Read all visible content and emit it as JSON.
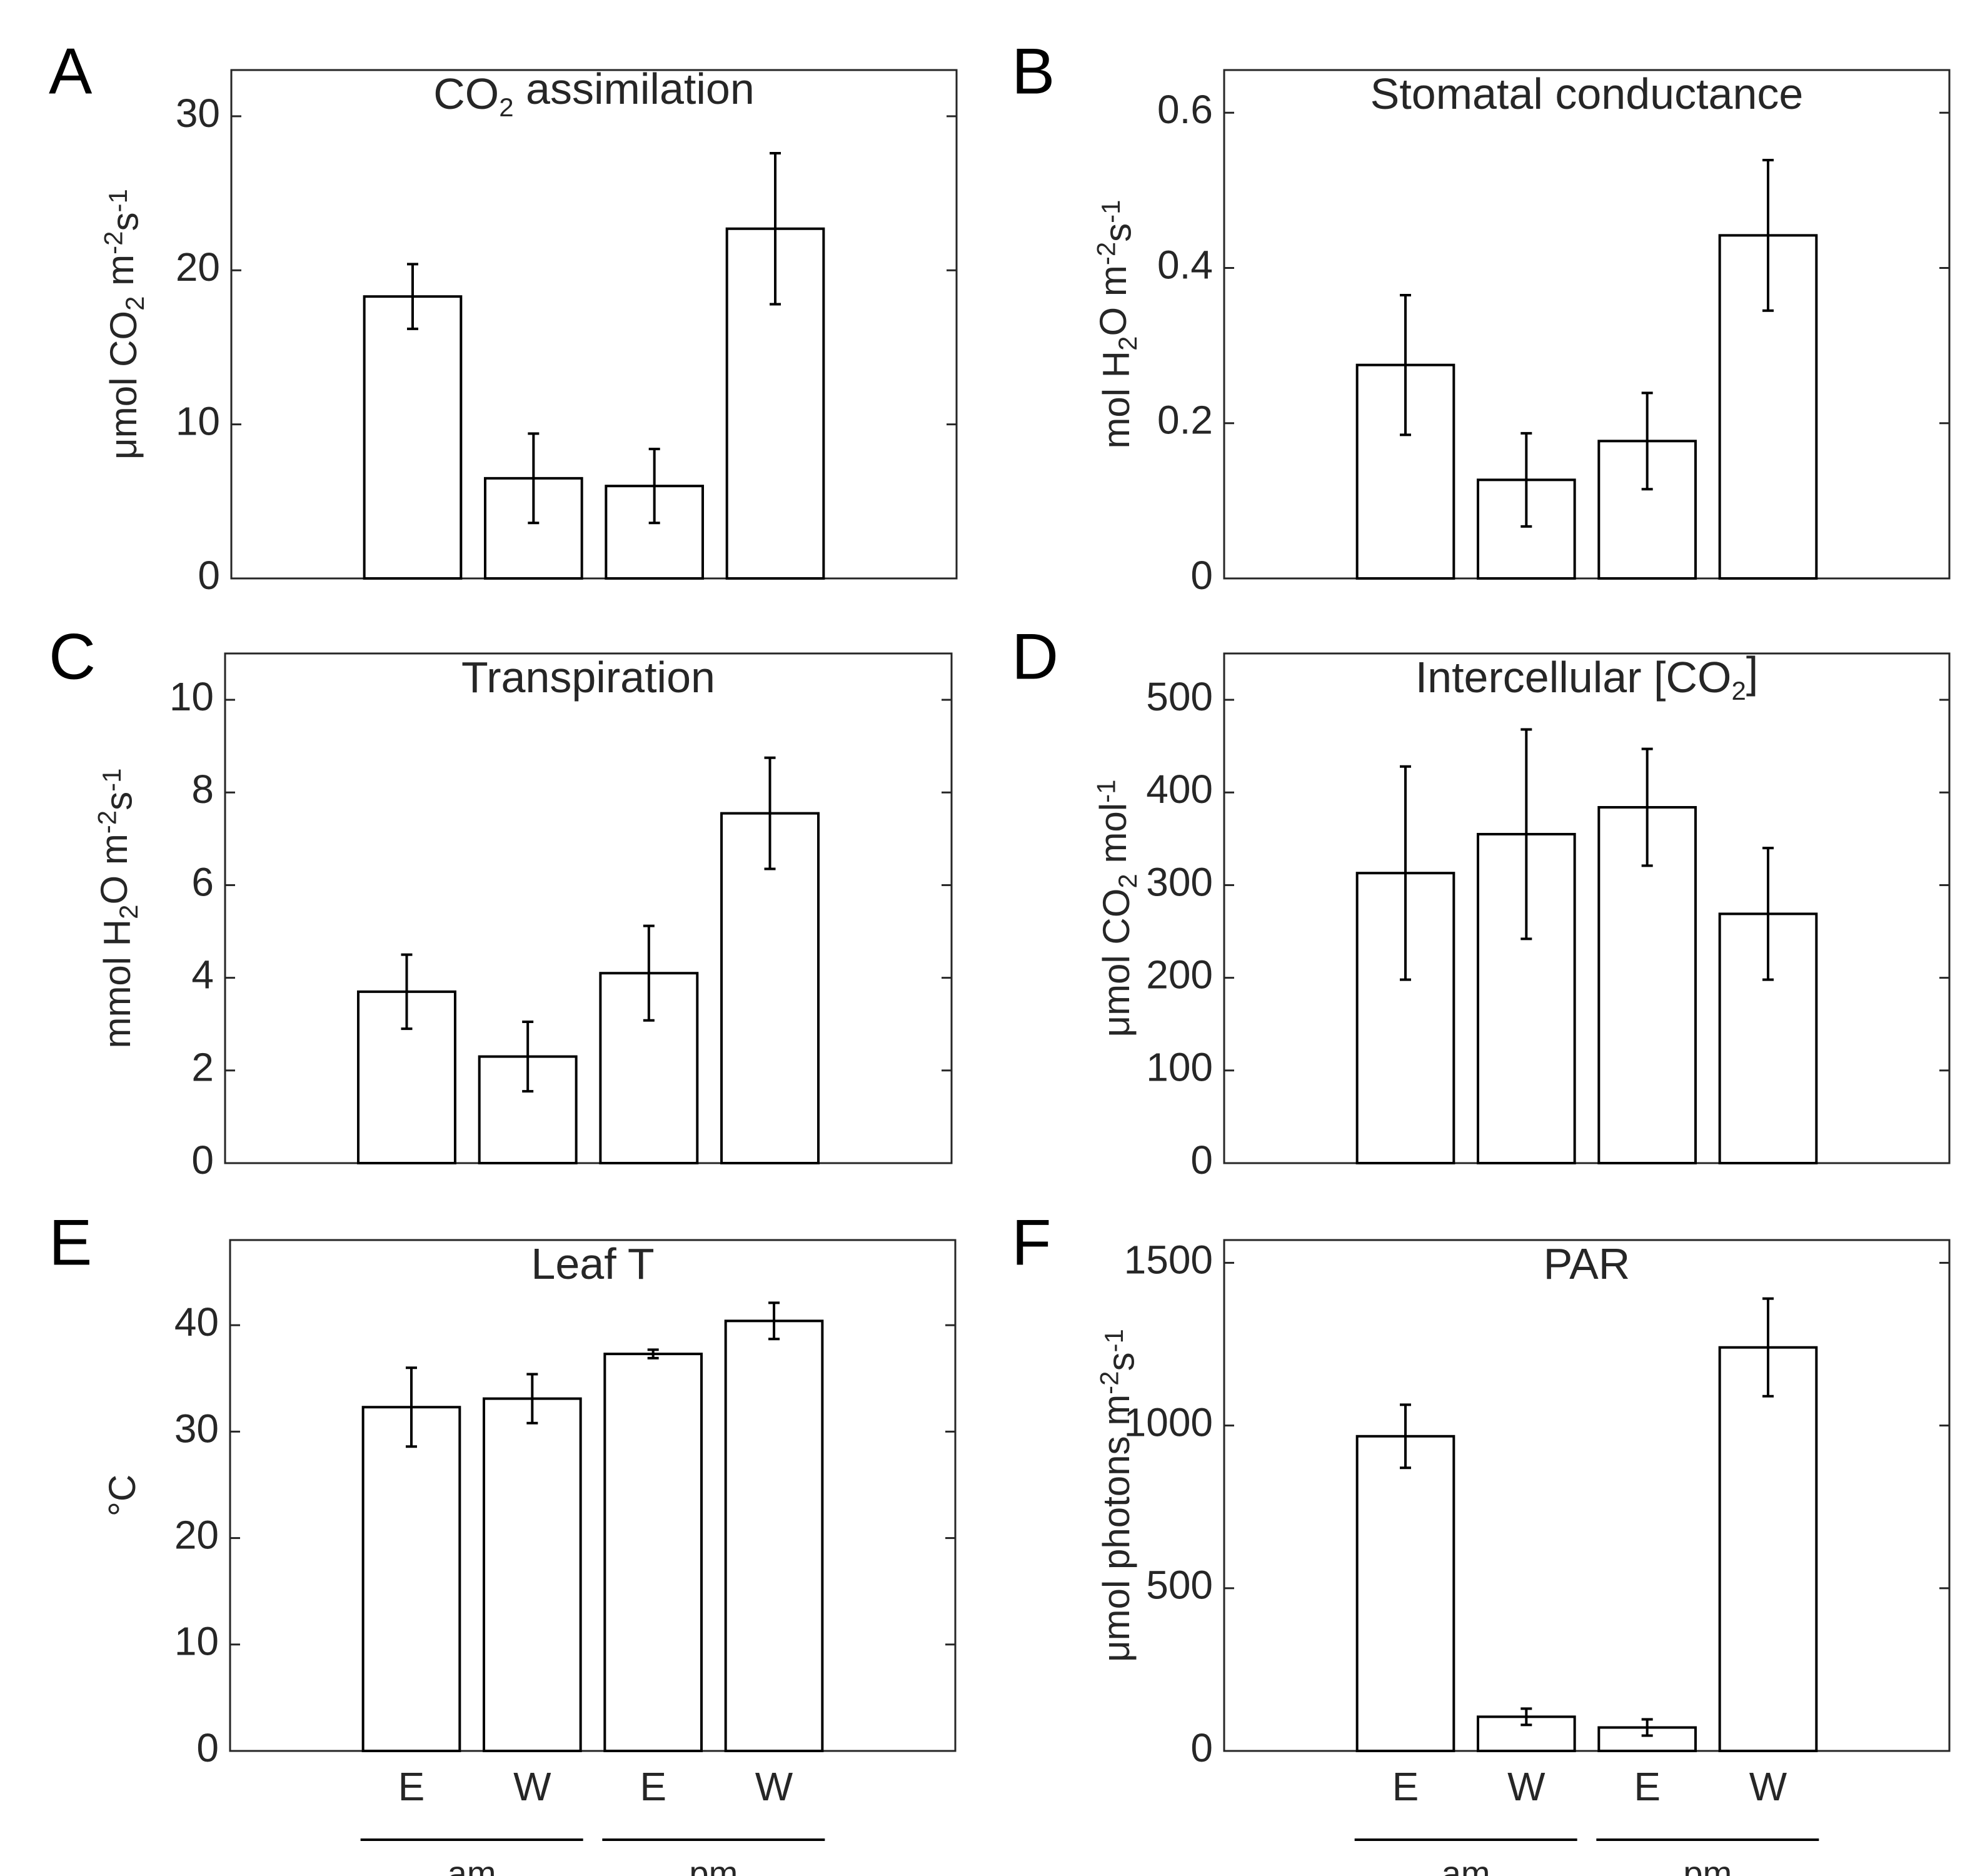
{
  "chart_data": [
    {
      "panel": "A",
      "type": "bar",
      "title": "CO2 assimilation",
      "title_parts": [
        "CO",
        "2",
        " assimilation"
      ],
      "ylabel_parts": [
        "μmol CO",
        "2",
        " m",
        "-2",
        "s",
        "-1"
      ],
      "categories": [
        "E",
        "W",
        "E",
        "W"
      ],
      "groups": [
        "am",
        "am",
        "pm",
        "pm"
      ],
      "values": [
        18.3,
        6.5,
        6.0,
        22.7
      ],
      "errors": [
        2.1,
        2.9,
        2.4,
        4.9
      ],
      "ylim": [
        0,
        33
      ],
      "yticks": [
        0,
        10,
        20,
        30
      ],
      "ytick_labels": [
        "0",
        "10",
        "20",
        "30"
      ]
    },
    {
      "panel": "B",
      "type": "bar",
      "title": "Stomatal conductance",
      "title_parts": [
        "Stomatal conductance",
        "",
        ""
      ],
      "ylabel_parts": [
        "mol H",
        "2",
        "O m",
        "-2",
        "s",
        "-1"
      ],
      "categories": [
        "E",
        "W",
        "E",
        "W"
      ],
      "groups": [
        "am",
        "am",
        "pm",
        "pm"
      ],
      "values": [
        0.275,
        0.127,
        0.177,
        0.442
      ],
      "errors": [
        0.09,
        0.06,
        0.062,
        0.097
      ],
      "ylim": [
        0,
        0.655
      ],
      "yticks": [
        0,
        0.2,
        0.4,
        0.6
      ],
      "ytick_labels": [
        "0",
        "0.2",
        "0.4",
        "0.6"
      ]
    },
    {
      "panel": "C",
      "type": "bar",
      "title": "Transpiration",
      "title_parts": [
        "Transpiration",
        "",
        ""
      ],
      "ylabel_parts": [
        "mmol H",
        "2",
        "O m",
        "-2",
        "s",
        "-1"
      ],
      "categories": [
        "E",
        "W",
        "E",
        "W"
      ],
      "groups": [
        "am",
        "am",
        "pm",
        "pm"
      ],
      "values": [
        3.7,
        2.3,
        4.1,
        7.55
      ],
      "errors": [
        0.8,
        0.75,
        1.02,
        1.2
      ],
      "ylim": [
        0,
        11
      ],
      "yticks": [
        0,
        2,
        4,
        6,
        8,
        10
      ],
      "ytick_labels": [
        "0",
        "2",
        "4",
        "6",
        "8",
        "10"
      ]
    },
    {
      "panel": "D",
      "type": "bar",
      "title": "Intercellular [CO2]",
      "title_parts": [
        "Intercellular [CO",
        "2",
        "]"
      ],
      "ylabel_parts": [
        "μmol CO",
        "2",
        " mol",
        "-1",
        "",
        ""
      ],
      "categories": [
        "E",
        "W",
        "E",
        "W"
      ],
      "groups": [
        "am",
        "am",
        "pm",
        "pm"
      ],
      "values": [
        313,
        355,
        384,
        269
      ],
      "errors": [
        115,
        113,
        63,
        71
      ],
      "ylim": [
        0,
        550
      ],
      "yticks": [
        0,
        100,
        200,
        300,
        400,
        500
      ],
      "ytick_labels": [
        "0",
        "100",
        "200",
        "300",
        "400",
        "500"
      ]
    },
    {
      "panel": "E",
      "type": "bar",
      "title": "Leaf T",
      "title_parts": [
        "Leaf T",
        "",
        ""
      ],
      "ylabel_parts": [
        "°C",
        "",
        "",
        "",
        "",
        ""
      ],
      "categories": [
        "E",
        "W",
        "E",
        "W"
      ],
      "groups": [
        "am",
        "am",
        "pm",
        "pm"
      ],
      "values": [
        32.3,
        33.1,
        37.3,
        40.4
      ],
      "errors": [
        3.7,
        2.3,
        0.4,
        1.7
      ],
      "ylim": [
        0,
        48
      ],
      "yticks": [
        0,
        10,
        20,
        30,
        40
      ],
      "ytick_labels": [
        "0",
        "10",
        "20",
        "30",
        "40"
      ]
    },
    {
      "panel": "F",
      "type": "bar",
      "title": "PAR",
      "title_parts": [
        "PAR",
        "",
        ""
      ],
      "ylabel_parts": [
        "μmol photons m",
        "-2",
        "s",
        "-1",
        "",
        ""
      ],
      "categories": [
        "E",
        "W",
        "E",
        "W"
      ],
      "groups": [
        "am",
        "am",
        "pm",
        "pm"
      ],
      "values": [
        967,
        105,
        72,
        1240
      ],
      "errors": [
        97,
        25,
        25,
        150
      ],
      "ylim": [
        0,
        1570
      ],
      "yticks": [
        0,
        500,
        1000,
        1500
      ],
      "ytick_labels": [
        "0",
        "500",
        "1000",
        "1500"
      ]
    }
  ],
  "x_group_labels": [
    "am",
    "pm"
  ]
}
